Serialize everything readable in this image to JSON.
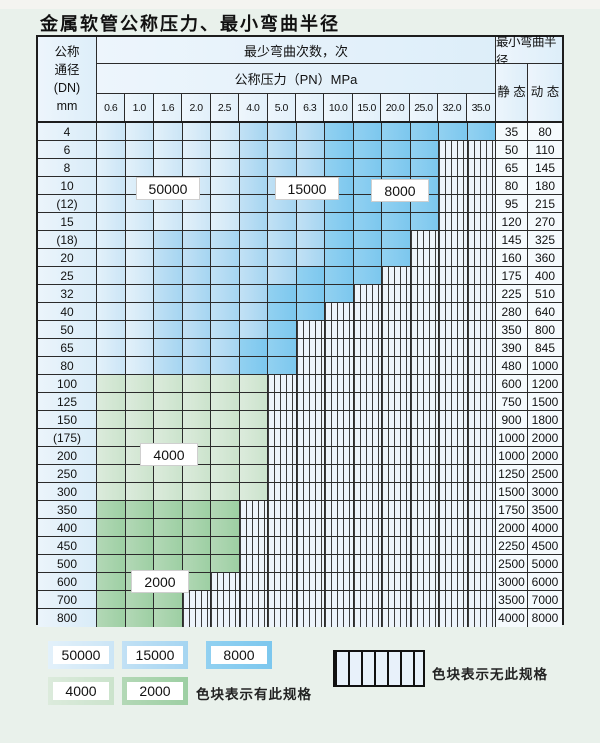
{
  "title": "金属软管公称压力、最小弯曲半径",
  "table": {
    "corner_lines": [
      "公称",
      "通径",
      "(DN)",
      "mm"
    ],
    "bend_header": "最少弯曲次数，次",
    "pressure_header": "公称压力（PN）MPa",
    "radius_header": "最小弯曲半径",
    "static_header": "静 态",
    "dynamic_header": "动 态",
    "pressures": [
      "0.6",
      "1.0",
      "1.6",
      "2.0",
      "2.5",
      "4.0",
      "5.0",
      "6.3",
      "10.0",
      "15.0",
      "20.0",
      "25.0",
      "32.0",
      "35.0"
    ],
    "rows": [
      {
        "dn": "4",
        "zones": [
          [
            "z50",
            5
          ],
          [
            "z15",
            3
          ],
          [
            "z8",
            6
          ]
        ],
        "static": "35",
        "dynamic": "80"
      },
      {
        "dn": "6",
        "zones": [
          [
            "z50",
            5
          ],
          [
            "z15",
            3
          ],
          [
            "z8",
            4
          ]
        ],
        "static": "50",
        "dynamic": "110"
      },
      {
        "dn": "8",
        "zones": [
          [
            "z50",
            5
          ],
          [
            "z15",
            3
          ],
          [
            "z8",
            4
          ]
        ],
        "static": "65",
        "dynamic": "145"
      },
      {
        "dn": "10",
        "zones": [
          [
            "z50",
            5
          ],
          [
            "z15",
            3
          ],
          [
            "z8",
            4
          ]
        ],
        "static": "80",
        "dynamic": "180"
      },
      {
        "dn": "(12)",
        "zones": [
          [
            "z50",
            5
          ],
          [
            "z15",
            3
          ],
          [
            "z8",
            4
          ]
        ],
        "static": "95",
        "dynamic": "215"
      },
      {
        "dn": "15",
        "zones": [
          [
            "z50",
            5
          ],
          [
            "z15",
            3
          ],
          [
            "z8",
            4
          ]
        ],
        "static": "120",
        "dynamic": "270"
      },
      {
        "dn": "(18)",
        "zones": [
          [
            "z50",
            2
          ],
          [
            "z15",
            6
          ],
          [
            "z8",
            3
          ]
        ],
        "static": "145",
        "dynamic": "325"
      },
      {
        "dn": "20",
        "zones": [
          [
            "z50",
            2
          ],
          [
            "z15",
            6
          ],
          [
            "z8",
            3
          ]
        ],
        "static": "160",
        "dynamic": "360"
      },
      {
        "dn": "25",
        "zones": [
          [
            "z50",
            2
          ],
          [
            "z15",
            5
          ],
          [
            "z8",
            3
          ]
        ],
        "static": "175",
        "dynamic": "400"
      },
      {
        "dn": "32",
        "zones": [
          [
            "z50",
            2
          ],
          [
            "z15",
            4
          ],
          [
            "z8",
            3
          ]
        ],
        "static": "225",
        "dynamic": "510"
      },
      {
        "dn": "40",
        "zones": [
          [
            "z50",
            2
          ],
          [
            "z15",
            4
          ],
          [
            "z8",
            2
          ]
        ],
        "static": "280",
        "dynamic": "640"
      },
      {
        "dn": "50",
        "zones": [
          [
            "z50",
            2
          ],
          [
            "z15",
            4
          ],
          [
            "z8",
            1
          ]
        ],
        "static": "350",
        "dynamic": "800"
      },
      {
        "dn": "65",
        "zones": [
          [
            "z50",
            2
          ],
          [
            "z15",
            3
          ],
          [
            "z8",
            2
          ]
        ],
        "static": "390",
        "dynamic": "845"
      },
      {
        "dn": "80",
        "zones": [
          [
            "z50",
            2
          ],
          [
            "z15",
            3
          ],
          [
            "z8",
            2
          ]
        ],
        "static": "480",
        "dynamic": "1000"
      },
      {
        "dn": "100",
        "zones": [
          [
            "z4",
            6
          ]
        ],
        "static": "600",
        "dynamic": "1200"
      },
      {
        "dn": "125",
        "zones": [
          [
            "z4",
            6
          ]
        ],
        "static": "750",
        "dynamic": "1500"
      },
      {
        "dn": "150",
        "zones": [
          [
            "z4",
            6
          ]
        ],
        "static": "900",
        "dynamic": "1800"
      },
      {
        "dn": "(175)",
        "zones": [
          [
            "z4",
            6
          ]
        ],
        "static": "1000",
        "dynamic": "2000"
      },
      {
        "dn": "200",
        "zones": [
          [
            "z4",
            6
          ]
        ],
        "static": "1000",
        "dynamic": "2000"
      },
      {
        "dn": "250",
        "zones": [
          [
            "z4",
            6
          ]
        ],
        "static": "1250",
        "dynamic": "2500"
      },
      {
        "dn": "300",
        "zones": [
          [
            "z4",
            6
          ]
        ],
        "static": "1500",
        "dynamic": "3000"
      },
      {
        "dn": "350",
        "zones": [
          [
            "z2",
            5
          ]
        ],
        "static": "1750",
        "dynamic": "3500"
      },
      {
        "dn": "400",
        "zones": [
          [
            "z2",
            5
          ]
        ],
        "static": "2000",
        "dynamic": "4000"
      },
      {
        "dn": "450",
        "zones": [
          [
            "z2",
            5
          ]
        ],
        "static": "2250",
        "dynamic": "4500"
      },
      {
        "dn": "500",
        "zones": [
          [
            "z2",
            5
          ]
        ],
        "static": "2500",
        "dynamic": "5000"
      },
      {
        "dn": "600",
        "zones": [
          [
            "z2",
            4
          ]
        ],
        "static": "3000",
        "dynamic": "6000"
      },
      {
        "dn": "700",
        "zones": [
          [
            "z2",
            3
          ]
        ],
        "static": "3500",
        "dynamic": "7000"
      },
      {
        "dn": "800",
        "zones": [
          [
            "z2",
            3
          ]
        ],
        "static": "4000",
        "dynamic": "8000"
      }
    ],
    "num_pressure_cols": 14
  },
  "zone_labels": {
    "z50": "50000",
    "z15": "15000",
    "z8": "8000",
    "z4": "4000",
    "z2": "2000"
  },
  "legend": {
    "items": [
      {
        "value": "50000",
        "zone": "z50"
      },
      {
        "value": "15000",
        "zone": "z15"
      },
      {
        "value": "8000",
        "zone": "z8"
      },
      {
        "value": "4000",
        "zone": "z4"
      },
      {
        "value": "2000",
        "zone": "z2"
      }
    ],
    "present_note": "色块表示有此规格",
    "absent_note": "色块表示无此规格"
  },
  "colors": {
    "blue_50000": "#cbe5f6",
    "blue_15000": "#a5d5f1",
    "blue_8000": "#7cc7ee",
    "green_4000": "#cbe3cc",
    "green_2000": "#9dcfa3",
    "hatch_fill": "#edf4fb",
    "grid_line": "#2b2b2b",
    "page_bg": "#e9f1eb"
  }
}
